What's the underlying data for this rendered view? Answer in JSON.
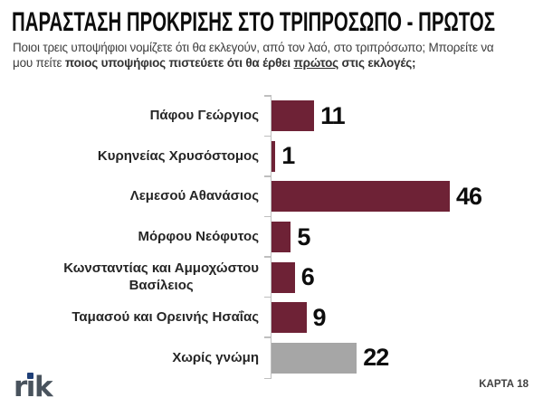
{
  "title": "ΠΑΡΑΣΤΑΣΗ ΠΡΟΚΡΙΣΗΣ ΣΤΟ ΤΡΙΠΡΟΣΩΠΟ - ΠΡΩΤΟΣ",
  "subtitle": {
    "line1": "Ποιοι τρεις υποψήφιοι νομίζετε ότι θα εκλεγούν, από τον λαό, στο τριπρόσωπο; Μπορείτε να",
    "line2_segments": [
      {
        "text": "μου πείτε ",
        "bold": false,
        "underline": false
      },
      {
        "text": "ποιος υποψήφιος πιστεύετε ότι θα έρθει ",
        "bold": true,
        "underline": false
      },
      {
        "text": "πρώτος",
        "bold": true,
        "underline": true
      },
      {
        "text": " στις εκλογές;",
        "bold": true,
        "underline": false
      }
    ]
  },
  "chart_data": {
    "type": "bar",
    "orientation": "horizontal",
    "title": "ΠΑΡΑΣΤΑΣΗ ΠΡΟΚΡΙΣΗΣ ΣΤΟ ΤΡΙΠΡΟΣΩΠΟ - ΠΡΩΤΟΣ",
    "categories": [
      "Πάφου Γεώργιος",
      "Κυρηνείας Χρυσόστομος",
      "Λεμεσού Αθανάσιος",
      "Μόρφου Νεόφυτος",
      "Κωνσταντίας και Αμμοχώστου\nΒασίλειος",
      "Ταμασού και Ορεινής Ησαΐας",
      "Χωρίς γνώμη"
    ],
    "values": [
      11,
      1,
      46,
      5,
      6,
      9,
      22
    ],
    "bar_colors": [
      "#6E2236",
      "#6E2236",
      "#6E2236",
      "#6E2236",
      "#6E2236",
      "#6E2236",
      "#A6A6A6"
    ],
    "xlim": [
      0,
      46
    ],
    "xlabel": "",
    "ylabel": "",
    "grid": false,
    "legend": "none",
    "value_labels": true,
    "axis_color": "#BFBFBF"
  },
  "footer": {
    "card_label": "ΚΑΡΤΑ 18",
    "logo_text": "rik"
  },
  "colors": {
    "bar_maroon": "#6E2236",
    "bar_gray": "#A6A6A6",
    "title_text": "#0d0d0d",
    "subtitle_text": "#3d3d3d",
    "category_text": "#262626",
    "value_text": "#0d0d0d",
    "axis": "#BFBFBF",
    "logo_letters": "#49535D",
    "logo_dot": "#1F3F77",
    "background": "#ffffff"
  }
}
